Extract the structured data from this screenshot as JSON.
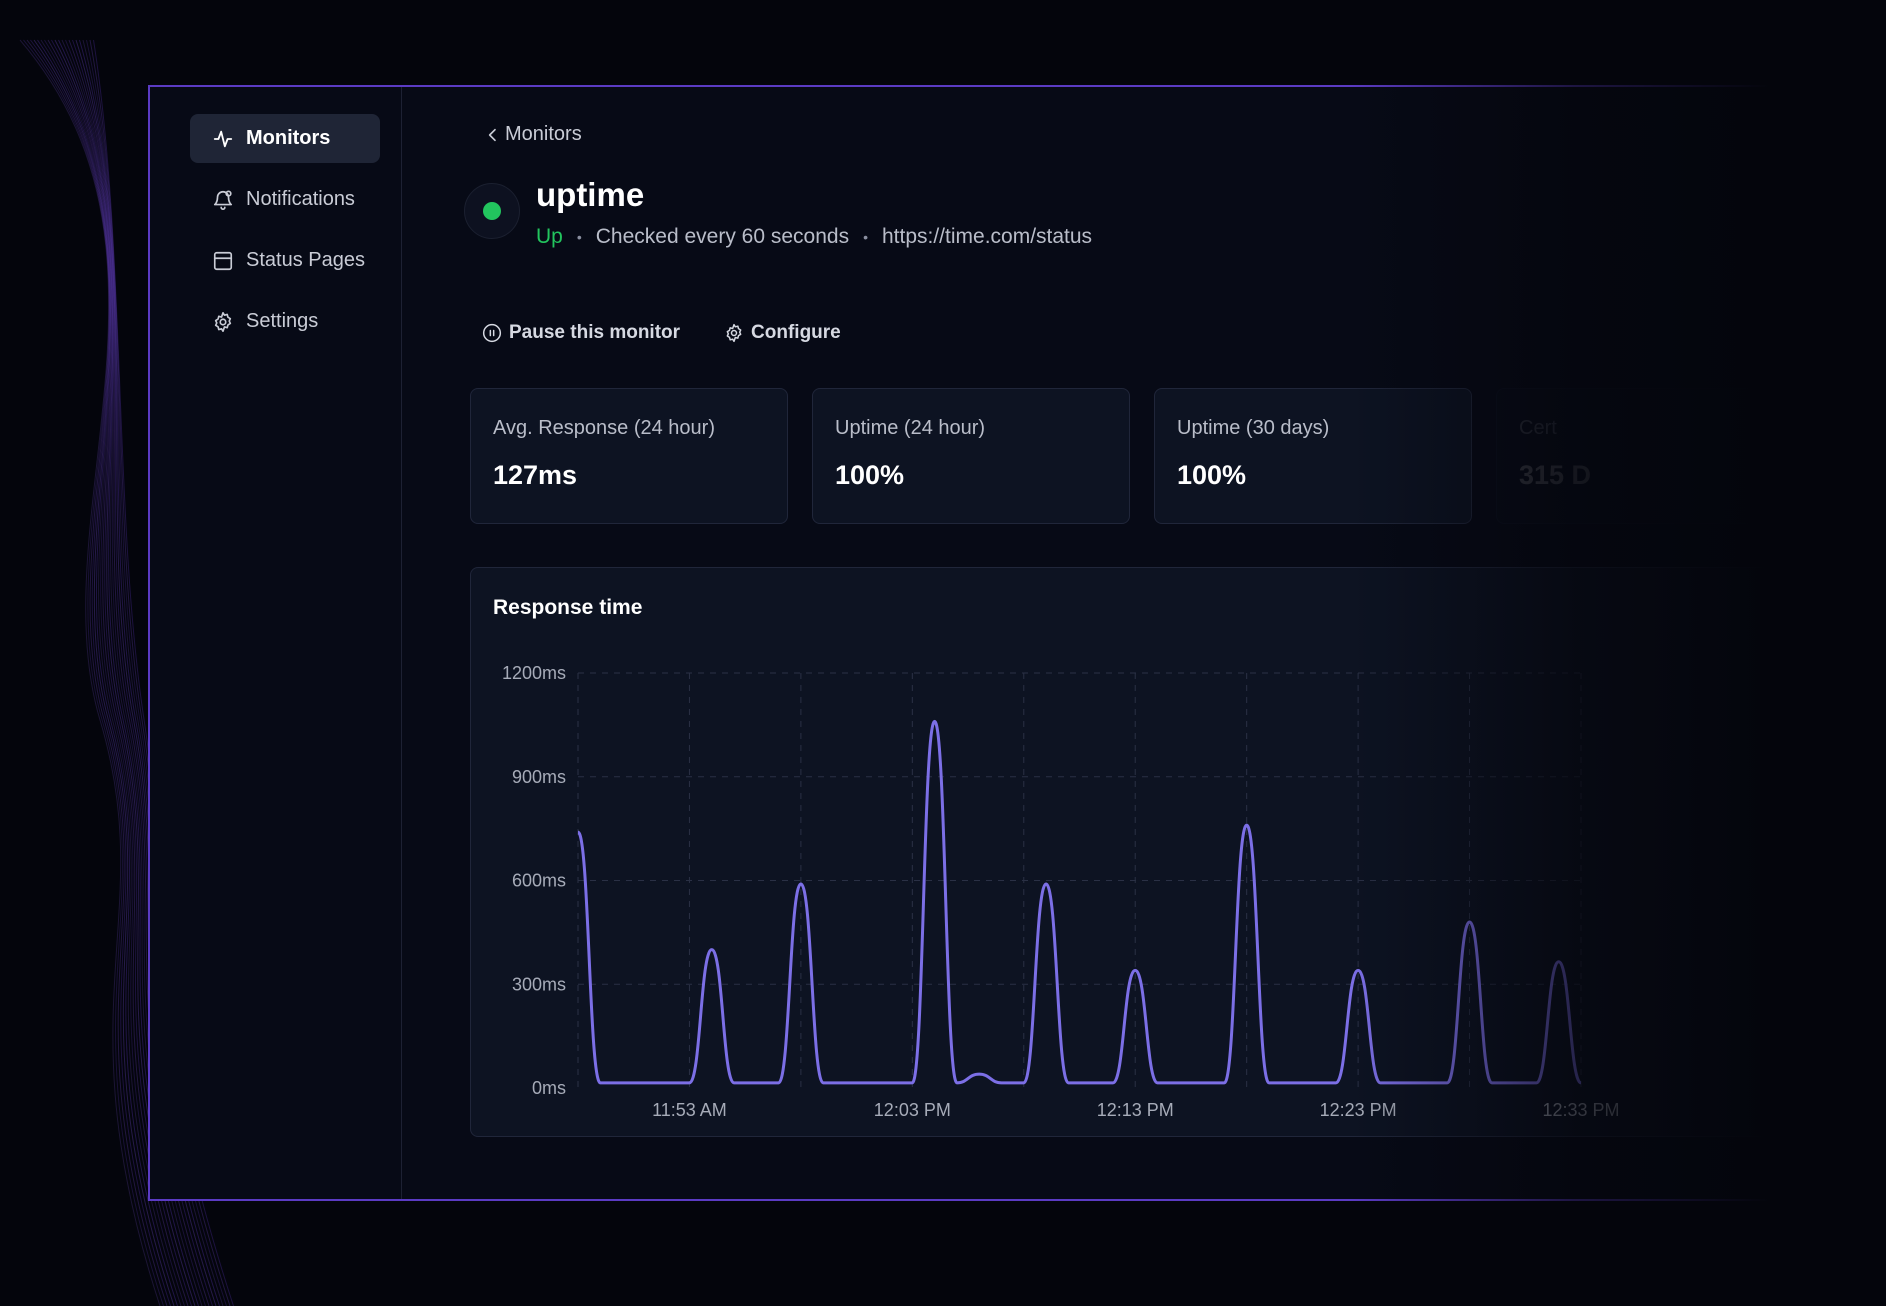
{
  "sidebar": {
    "items": [
      {
        "label": "Monitors",
        "icon": "activity-icon",
        "active": true
      },
      {
        "label": "Notifications",
        "icon": "bell-icon",
        "active": false
      },
      {
        "label": "Status Pages",
        "icon": "layout-icon",
        "active": false
      },
      {
        "label": "Settings",
        "icon": "gear-icon",
        "active": false
      }
    ]
  },
  "breadcrumb": {
    "back_label": "Monitors"
  },
  "monitor": {
    "name": "uptime",
    "status": "Up",
    "interval": "Checked every 60 seconds",
    "url": "https://time.com/status",
    "status_color": "#22c55e"
  },
  "actions": {
    "pause": "Pause this monitor",
    "configure": "Configure"
  },
  "stats": [
    {
      "label": "Avg. Response (24 hour)",
      "value": "127ms"
    },
    {
      "label": "Uptime (24 hour)",
      "value": "100%"
    },
    {
      "label": "Uptime (30 days)",
      "value": "100%"
    },
    {
      "label": "Cert",
      "value": "315 D"
    }
  ],
  "chart_data": {
    "type": "line",
    "title": "Response time",
    "ylim": [
      0,
      1200
    ],
    "yticks": [
      "0ms",
      "300ms",
      "600ms",
      "900ms",
      "1200ms"
    ],
    "xticks": [
      "11:53 AM",
      "12:03 PM",
      "12:13 PM",
      "12:23 PM",
      "12:33 PM"
    ],
    "x_minutes": [
      0,
      1,
      2,
      3,
      4,
      5,
      6,
      7,
      8,
      9,
      10,
      11,
      12,
      13,
      14,
      15,
      16,
      17,
      18,
      19,
      20,
      21,
      22,
      23,
      24,
      25,
      26,
      27,
      28,
      29,
      30,
      31,
      32,
      33,
      34,
      35,
      36,
      37,
      38,
      39,
      40,
      41,
      42,
      43,
      44,
      45
    ],
    "series": [
      {
        "values": [
          740,
          15,
          15,
          15,
          15,
          15,
          400,
          15,
          15,
          15,
          590,
          15,
          15,
          15,
          15,
          15,
          1060,
          15,
          40,
          15,
          15,
          590,
          15,
          15,
          15,
          340,
          15,
          15,
          15,
          15,
          760,
          15,
          15,
          15,
          15,
          340,
          15,
          15,
          15,
          15,
          480,
          15,
          15,
          15,
          365,
          15
        ]
      }
    ],
    "line_color": "#7c6fe6",
    "grid": true
  }
}
